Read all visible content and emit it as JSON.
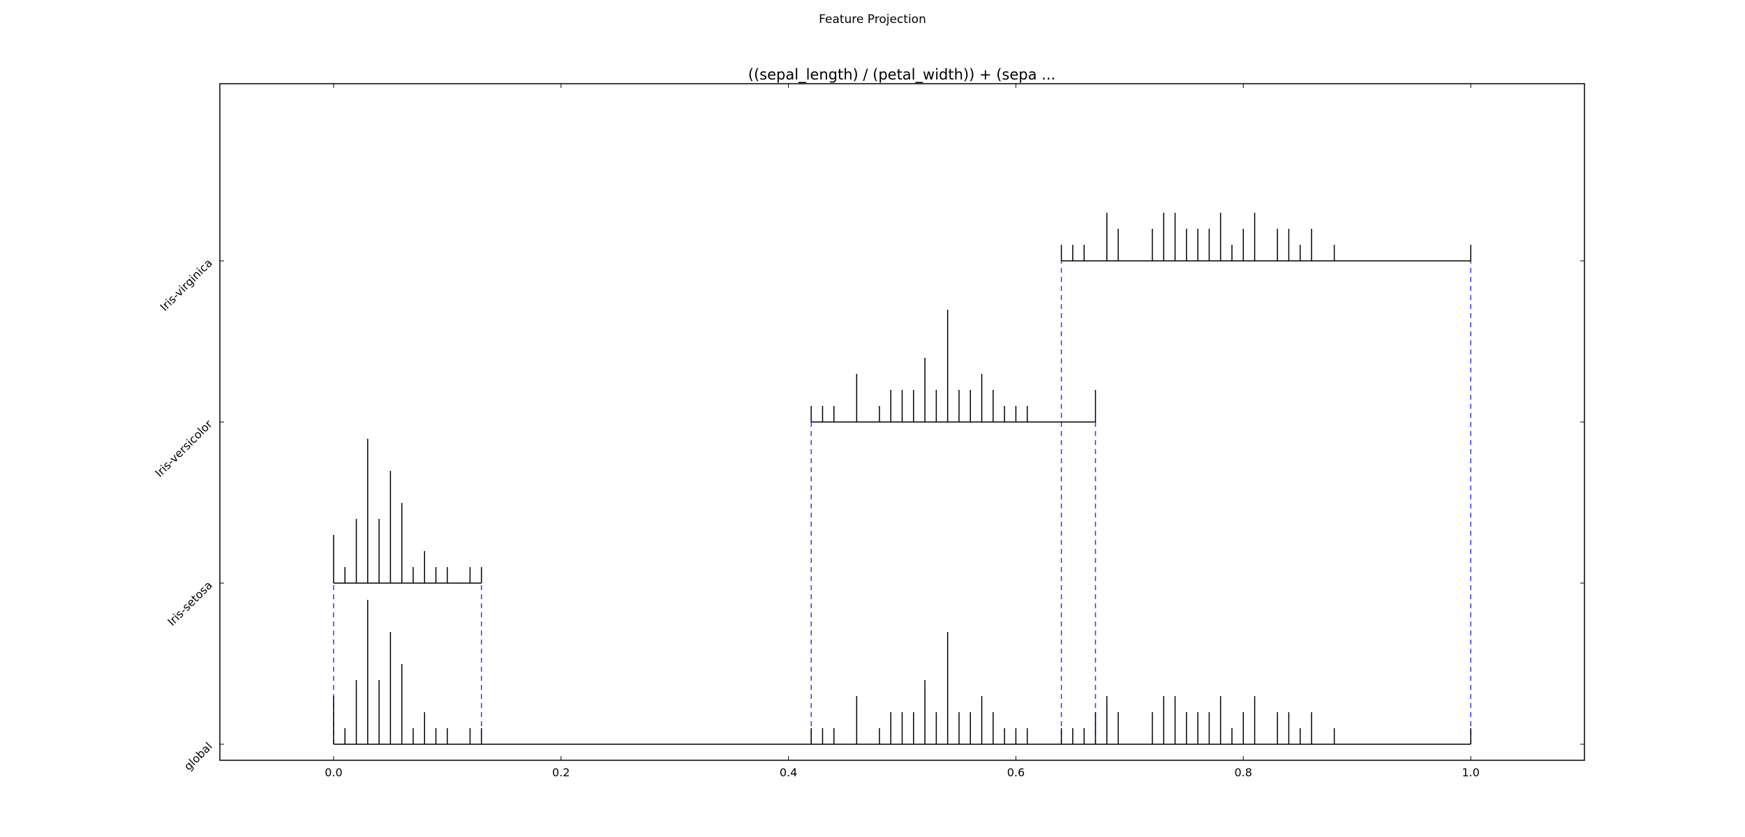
{
  "figure_title": "Feature Projection",
  "chart_data": {
    "type": "scatter",
    "title": "((sepal_length) / (petal_width)) + (sepa ...",
    "xlabel": "",
    "ylabel": "",
    "xlim": [
      -0.1,
      1.1
    ],
    "x_ticks": [
      0.0,
      0.2,
      0.4,
      0.6,
      0.8,
      1.0
    ],
    "x_tick_labels": [
      "0.0",
      "0.2",
      "0.4",
      "0.6",
      "0.8",
      "1.0"
    ],
    "y_categories": [
      "global",
      "Iris-setosa",
      "Iris-versicolor",
      "Iris-virginica"
    ],
    "grid": false,
    "spike_color": "#000000",
    "range_line_color": "#000000",
    "boundary_color": "#3333ff",
    "rows": [
      {
        "name": "global",
        "range": [
          0.0,
          1.0
        ],
        "spikes": [
          [
            0.0,
            3
          ],
          [
            0.01,
            1
          ],
          [
            0.02,
            4
          ],
          [
            0.03,
            9
          ],
          [
            0.04,
            4
          ],
          [
            0.05,
            7
          ],
          [
            0.06,
            5
          ],
          [
            0.07,
            1
          ],
          [
            0.08,
            2
          ],
          [
            0.09,
            1
          ],
          [
            0.1,
            1
          ],
          [
            0.12,
            1
          ],
          [
            0.13,
            1
          ],
          [
            0.42,
            1
          ],
          [
            0.43,
            1
          ],
          [
            0.44,
            1
          ],
          [
            0.46,
            3
          ],
          [
            0.48,
            1
          ],
          [
            0.49,
            2
          ],
          [
            0.5,
            2
          ],
          [
            0.51,
            2
          ],
          [
            0.52,
            4
          ],
          [
            0.53,
            2
          ],
          [
            0.54,
            7
          ],
          [
            0.55,
            2
          ],
          [
            0.56,
            2
          ],
          [
            0.57,
            3
          ],
          [
            0.58,
            2
          ],
          [
            0.59,
            1
          ],
          [
            0.6,
            1
          ],
          [
            0.61,
            1
          ],
          [
            0.64,
            1
          ],
          [
            0.65,
            1
          ],
          [
            0.66,
            1
          ],
          [
            0.67,
            2
          ],
          [
            0.68,
            3
          ],
          [
            0.69,
            2
          ],
          [
            0.72,
            2
          ],
          [
            0.73,
            3
          ],
          [
            0.74,
            3
          ],
          [
            0.75,
            2
          ],
          [
            0.76,
            2
          ],
          [
            0.77,
            2
          ],
          [
            0.78,
            3
          ],
          [
            0.79,
            1
          ],
          [
            0.8,
            2
          ],
          [
            0.81,
            3
          ],
          [
            0.83,
            2
          ],
          [
            0.84,
            2
          ],
          [
            0.85,
            1
          ],
          [
            0.86,
            2
          ],
          [
            0.88,
            1
          ],
          [
            1.0,
            1
          ]
        ]
      },
      {
        "name": "Iris-setosa",
        "range": [
          0.0,
          0.13
        ],
        "spikes": [
          [
            0.0,
            3
          ],
          [
            0.01,
            1
          ],
          [
            0.02,
            4
          ],
          [
            0.03,
            9
          ],
          [
            0.04,
            4
          ],
          [
            0.05,
            7
          ],
          [
            0.06,
            5
          ],
          [
            0.07,
            1
          ],
          [
            0.08,
            2
          ],
          [
            0.09,
            1
          ],
          [
            0.1,
            1
          ],
          [
            0.12,
            1
          ],
          [
            0.13,
            1
          ]
        ]
      },
      {
        "name": "Iris-versicolor",
        "range": [
          0.42,
          0.67
        ],
        "spikes": [
          [
            0.42,
            1
          ],
          [
            0.43,
            1
          ],
          [
            0.44,
            1
          ],
          [
            0.46,
            3
          ],
          [
            0.48,
            1
          ],
          [
            0.49,
            2
          ],
          [
            0.5,
            2
          ],
          [
            0.51,
            2
          ],
          [
            0.52,
            4
          ],
          [
            0.53,
            2
          ],
          [
            0.54,
            7
          ],
          [
            0.55,
            2
          ],
          [
            0.56,
            2
          ],
          [
            0.57,
            3
          ],
          [
            0.58,
            2
          ],
          [
            0.59,
            1
          ],
          [
            0.6,
            1
          ],
          [
            0.61,
            1
          ],
          [
            0.67,
            2
          ]
        ]
      },
      {
        "name": "Iris-virginica",
        "range": [
          0.64,
          1.0
        ],
        "spikes": [
          [
            0.64,
            1
          ],
          [
            0.65,
            1
          ],
          [
            0.66,
            1
          ],
          [
            0.68,
            3
          ],
          [
            0.69,
            2
          ],
          [
            0.72,
            2
          ],
          [
            0.73,
            3
          ],
          [
            0.74,
            3
          ],
          [
            0.75,
            2
          ],
          [
            0.76,
            2
          ],
          [
            0.77,
            2
          ],
          [
            0.78,
            3
          ],
          [
            0.79,
            1
          ],
          [
            0.8,
            2
          ],
          [
            0.81,
            3
          ],
          [
            0.83,
            2
          ],
          [
            0.84,
            2
          ],
          [
            0.85,
            1
          ],
          [
            0.86,
            2
          ],
          [
            0.88,
            1
          ],
          [
            1.0,
            1
          ]
        ]
      }
    ],
    "boundaries": [
      {
        "x": 0.0,
        "from_row": "global",
        "to_row": "Iris-setosa"
      },
      {
        "x": 0.13,
        "from_row": "global",
        "to_row": "Iris-setosa"
      },
      {
        "x": 0.42,
        "from_row": "global",
        "to_row": "Iris-versicolor"
      },
      {
        "x": 0.67,
        "from_row": "global",
        "to_row": "Iris-versicolor"
      },
      {
        "x": 0.64,
        "from_row": "global",
        "to_row": "Iris-virginica"
      },
      {
        "x": 1.0,
        "from_row": "global",
        "to_row": "Iris-virginica"
      }
    ]
  }
}
